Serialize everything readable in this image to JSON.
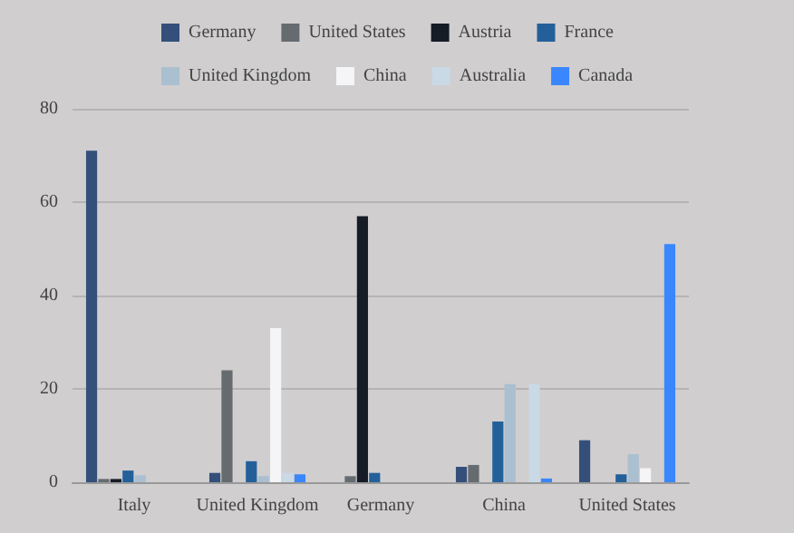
{
  "chart_data": {
    "type": "bar",
    "categories": [
      "Italy",
      "United Kingdom",
      "Germany",
      "China",
      "United States"
    ],
    "series": [
      {
        "name": "Germany",
        "color": "#34507a",
        "values": [
          71,
          2,
          0,
          3.3,
          9
        ]
      },
      {
        "name": "United States",
        "color": "#666b70",
        "values": [
          0.7,
          24,
          1.3,
          3.7,
          0
        ]
      },
      {
        "name": "Austria",
        "color": "#161c26",
        "values": [
          0.7,
          0,
          57,
          0,
          0
        ]
      },
      {
        "name": "France",
        "color": "#23609a",
        "values": [
          2.5,
          4.5,
          2,
          13,
          1.7
        ]
      },
      {
        "name": "United Kingdom",
        "color": "#aabfd0",
        "values": [
          1.5,
          1.3,
          0,
          21,
          6
        ]
      },
      {
        "name": "China",
        "color": "#f5f5f7",
        "values": [
          0,
          33,
          0,
          0,
          3
        ]
      },
      {
        "name": "Australia",
        "color": "#c9d9e6",
        "values": [
          null,
          2,
          0,
          21,
          null
        ]
      },
      {
        "name": "Canada",
        "color": "#3a86ff",
        "values": [
          0,
          1.7,
          0,
          0.8,
          51
        ]
      }
    ],
    "ylim": [
      0,
      80
    ],
    "yticks": [
      0,
      20,
      40,
      60,
      80
    ],
    "grid": "y",
    "legend": "top"
  }
}
